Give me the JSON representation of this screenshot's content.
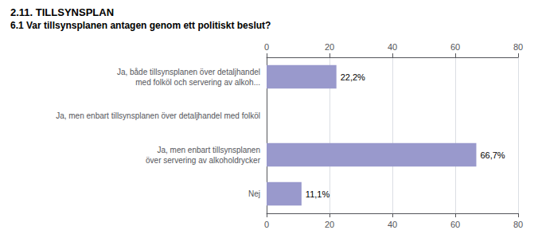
{
  "chart_data": {
    "type": "bar",
    "orientation": "horizontal",
    "title": "2.11. TILLSYNSPLAN",
    "subtitle": "6.1 Var tillsynsplanen antagen genom ett politiskt beslut?",
    "categories": [
      "Ja, både tillsynsplanen över detaljhandel\nmed folköl och servering av alkoh...",
      "Ja, men enbart tillsynsplanen över detaljhandel med folköl",
      "Ja, men enbart tillsynsplanen\növer servering av alkoholdrycker",
      "Nej"
    ],
    "values": [
      22.2,
      0.0,
      66.7,
      11.1
    ],
    "value_labels": [
      "22,2%",
      null,
      "66,7%",
      "11,1%"
    ],
    "data_labels": true,
    "color": "#9999cc",
    "xlim": [
      0,
      80
    ],
    "xticks": [
      0,
      20,
      40,
      60,
      80
    ],
    "grid": true
  }
}
